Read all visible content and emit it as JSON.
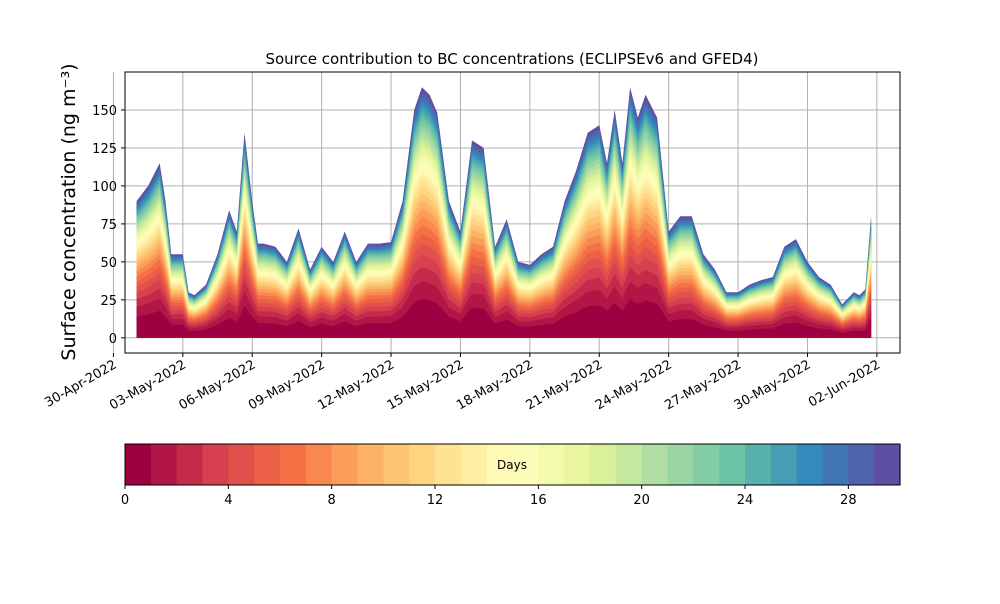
{
  "chart_data": {
    "type": "area",
    "title": "Source contribution to BC concentrations (ECLIPSEv6 and GFED4)",
    "ylabel": "Surface concentration (ng m⁻³)",
    "xlabel": "",
    "stacked": true,
    "grid": true,
    "ylim": [
      -10,
      175
    ],
    "xlim": [
      "2022-04-30T12:00",
      "2022-06-03T00:00"
    ],
    "x_tick_labels": [
      "30-Apr-2022",
      "03-May-2022",
      "06-May-2022",
      "09-May-2022",
      "12-May-2022",
      "15-May-2022",
      "18-May-2022",
      "21-May-2022",
      "24-May-2022",
      "27-May-2022",
      "30-May-2022",
      "02-Jun-2022"
    ],
    "y_ticks": [
      0,
      25,
      50,
      75,
      100,
      125,
      150
    ],
    "series_count": 30,
    "series_description": "Stacked contributions by emission age bin (0–30 days), colored by age",
    "total": {
      "x": [
        "2022-05-01T00:00",
        "2022-05-01T12:00",
        "2022-05-02T00:00",
        "2022-05-02T06:00",
        "2022-05-02T12:00",
        "2022-05-03T00:00",
        "2022-05-03T06:00",
        "2022-05-03T12:00",
        "2022-05-04T00:00",
        "2022-05-04T12:00",
        "2022-05-05T00:00",
        "2022-05-05T08:00",
        "2022-05-05T16:00",
        "2022-05-06T00:00",
        "2022-05-06T06:00",
        "2022-05-06T12:00",
        "2022-05-07T00:00",
        "2022-05-07T12:00",
        "2022-05-08T00:00",
        "2022-05-08T12:00",
        "2022-05-09T00:00",
        "2022-05-09T12:00",
        "2022-05-10T00:00",
        "2022-05-10T12:00",
        "2022-05-11T00:00",
        "2022-05-11T12:00",
        "2022-05-12T00:00",
        "2022-05-12T12:00",
        "2022-05-13T00:00",
        "2022-05-13T08:00",
        "2022-05-13T16:00",
        "2022-05-14T00:00",
        "2022-05-14T12:00",
        "2022-05-15T00:00",
        "2022-05-15T12:00",
        "2022-05-16T00:00",
        "2022-05-16T12:00",
        "2022-05-17T00:00",
        "2022-05-17T12:00",
        "2022-05-18T00:00",
        "2022-05-18T12:00",
        "2022-05-19T00:00",
        "2022-05-19T12:00",
        "2022-05-20T00:00",
        "2022-05-20T12:00",
        "2022-05-21T00:00",
        "2022-05-21T08:00",
        "2022-05-21T16:00",
        "2022-05-22T00:00",
        "2022-05-22T08:00",
        "2022-05-22T16:00",
        "2022-05-23T00:00",
        "2022-05-23T12:00",
        "2022-05-24T00:00",
        "2022-05-24T12:00",
        "2022-05-25T00:00",
        "2022-05-25T12:00",
        "2022-05-26T00:00",
        "2022-05-26T12:00",
        "2022-05-27T00:00",
        "2022-05-27T12:00",
        "2022-05-28T00:00",
        "2022-05-28T12:00",
        "2022-05-29T00:00",
        "2022-05-29T12:00",
        "2022-05-30T00:00",
        "2022-05-30T12:00",
        "2022-05-31T00:00",
        "2022-05-31T12:00",
        "2022-06-01T00:00",
        "2022-06-01T06:00",
        "2022-06-01T12:00",
        "2022-06-01T18:00"
      ],
      "y": [
        90,
        100,
        115,
        90,
        55,
        55,
        30,
        28,
        35,
        55,
        84,
        70,
        135,
        90,
        62,
        62,
        60,
        50,
        72,
        45,
        60,
        50,
        70,
        50,
        62,
        62,
        63,
        90,
        150,
        165,
        160,
        148,
        90,
        70,
        130,
        125,
        60,
        78,
        50,
        48,
        55,
        60,
        90,
        110,
        135,
        140,
        115,
        150,
        115,
        165,
        145,
        160,
        145,
        70,
        80,
        80,
        55,
        45,
        30,
        30,
        35,
        38,
        40,
        60,
        65,
        50,
        40,
        35,
        22,
        30,
        28,
        32,
        80
      ]
    }
  },
  "colorbar": {
    "label": "Days",
    "min": 0,
    "max": 30,
    "bins": 30,
    "ticks": [
      0,
      4,
      8,
      12,
      16,
      20,
      24,
      28
    ]
  }
}
